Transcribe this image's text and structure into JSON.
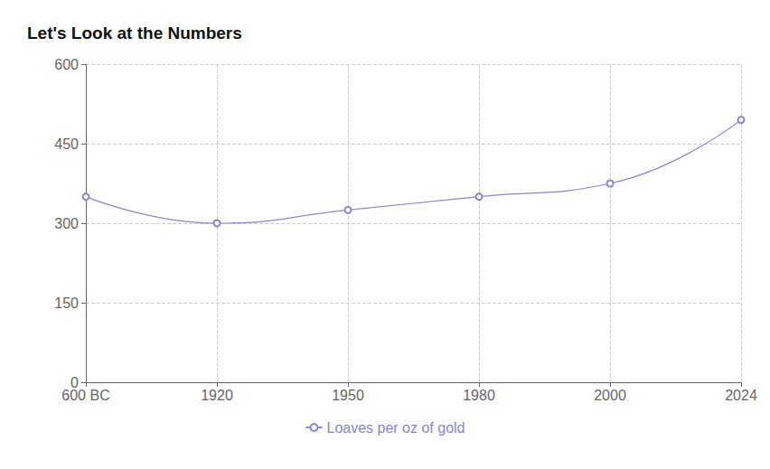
{
  "chart_data": {
    "type": "line",
    "title": "Let's Look at the Numbers",
    "categories": [
      "600 BC",
      "1920",
      "1950",
      "1980",
      "2000",
      "2024"
    ],
    "series": [
      {
        "name": "Loaves per oz of gold",
        "color": "#8884d8",
        "values": [
          350,
          300,
          325,
          350,
          375,
          495
        ]
      }
    ],
    "ylim": [
      0,
      600
    ],
    "yticks": [
      0,
      150,
      300,
      450,
      600
    ],
    "grid": true,
    "legend": "bottom",
    "marker": "emptyCircle",
    "line_style": "smooth"
  }
}
